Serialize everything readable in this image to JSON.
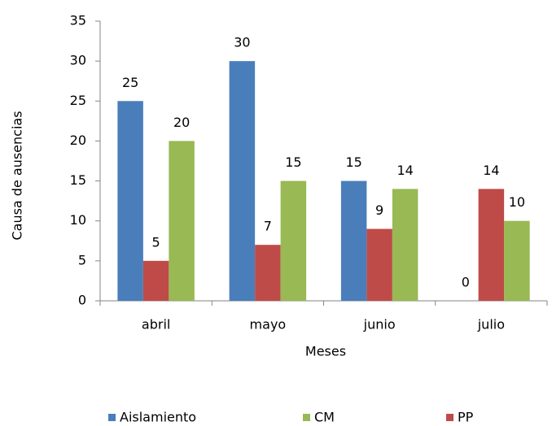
{
  "chart_data": {
    "type": "bar",
    "categories": [
      "abril",
      "mayo",
      "junio",
      "julio"
    ],
    "series": [
      {
        "name": "Aislamiento",
        "color": "#4a7ebb",
        "values": [
          25,
          30,
          15,
          0
        ]
      },
      {
        "name": "PP",
        "color": "#be4b48",
        "values": [
          5,
          7,
          9,
          14
        ]
      },
      {
        "name": "CM",
        "color": "#98b954",
        "values": [
          20,
          15,
          14,
          10
        ]
      }
    ],
    "x_label": "Meses",
    "y_label": "Causa de ausencias",
    "ylim": [
      0,
      35
    ],
    "yticks": [
      0,
      5,
      10,
      15,
      20,
      25,
      30,
      35
    ],
    "grid": false,
    "legend": "bottom"
  }
}
